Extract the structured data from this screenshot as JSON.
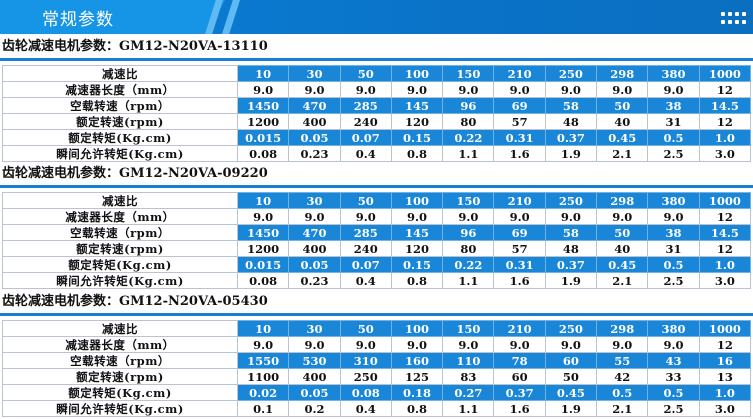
{
  "header": {
    "title": "常规参数"
  },
  "sections": [
    {
      "title": "齿轮减速电机参数：GM12-N20VA-13110",
      "rows": [
        {
          "label": "减速比",
          "values": [
            "10",
            "30",
            "50",
            "100",
            "150",
            "210",
            "250",
            "298",
            "380",
            "1000"
          ]
        },
        {
          "label": "减速器长度（mm）",
          "values": [
            "9.0",
            "9.0",
            "9.0",
            "9.0",
            "9.0",
            "9.0",
            "9.0",
            "9.0",
            "9.0",
            "12"
          ]
        },
        {
          "label": "空载转速（rpm）",
          "values": [
            "1450",
            "470",
            "285",
            "145",
            "96",
            "69",
            "58",
            "50",
            "38",
            "14.5"
          ]
        },
        {
          "label": "额定转速(rpm)",
          "values": [
            "1200",
            "400",
            "240",
            "120",
            "80",
            "57",
            "48",
            "40",
            "31",
            "12"
          ]
        },
        {
          "label": "额定转矩(Kg.cm)",
          "values": [
            "0.015",
            "0.05",
            "0.07",
            "0.15",
            "0.22",
            "0.31",
            "0.37",
            "0.45",
            "0.5",
            "1.0"
          ]
        },
        {
          "label": "瞬间允许转矩(Kg.cm)",
          "values": [
            "0.08",
            "0.23",
            "0.4",
            "0.8",
            "1.1",
            "1.6",
            "1.9",
            "2.1",
            "2.5",
            "3.0"
          ]
        }
      ]
    },
    {
      "title": "齿轮减速电机参数：GM12-N20VA-09220",
      "rows": [
        {
          "label": "减速比",
          "values": [
            "10",
            "30",
            "50",
            "100",
            "150",
            "210",
            "250",
            "298",
            "380",
            "1000"
          ]
        },
        {
          "label": "减速器长度（mm）",
          "values": [
            "9.0",
            "9.0",
            "9.0",
            "9.0",
            "9.0",
            "9.0",
            "9.0",
            "9.0",
            "9.0",
            "12"
          ]
        },
        {
          "label": "空载转速（rpm）",
          "values": [
            "1450",
            "470",
            "285",
            "145",
            "96",
            "69",
            "58",
            "50",
            "38",
            "14.5"
          ]
        },
        {
          "label": "额定转速(rpm)",
          "values": [
            "1200",
            "400",
            "240",
            "120",
            "80",
            "57",
            "48",
            "40",
            "31",
            "12"
          ]
        },
        {
          "label": "额定转矩(Kg.cm)",
          "values": [
            "0.015",
            "0.05",
            "0.07",
            "0.15",
            "0.22",
            "0.31",
            "0.37",
            "0.45",
            "0.5",
            "1.0"
          ]
        },
        {
          "label": "瞬间允许转矩(Kg.cm)",
          "values": [
            "0.08",
            "0.23",
            "0.4",
            "0.8",
            "1.1",
            "1.6",
            "1.9",
            "2.1",
            "2.5",
            "3.0"
          ]
        }
      ]
    },
    {
      "title": "齿轮减速电机参数：GM12-N20VA-05430",
      "rows": [
        {
          "label": "减速比",
          "values": [
            "10",
            "30",
            "50",
            "100",
            "150",
            "210",
            "250",
            "298",
            "380",
            "1000"
          ]
        },
        {
          "label": "减速器长度（mm）",
          "values": [
            "9.0",
            "9.0",
            "9.0",
            "9.0",
            "9.0",
            "9.0",
            "9.0",
            "9.0",
            "9.0",
            "12"
          ]
        },
        {
          "label": "空载转速（rpm）",
          "values": [
            "1550",
            "530",
            "310",
            "160",
            "110",
            "78",
            "60",
            "55",
            "43",
            "16"
          ]
        },
        {
          "label": "额定转速(rpm)",
          "values": [
            "1100",
            "400",
            "250",
            "125",
            "83",
            "60",
            "50",
            "42",
            "33",
            "13"
          ]
        },
        {
          "label": "额定转矩(Kg.cm)",
          "values": [
            "0.02",
            "0.05",
            "0.08",
            "0.18",
            "0.27",
            "0.37",
            "0.45",
            "0.5",
            "0.5",
            "1.0"
          ]
        },
        {
          "label": "瞬间允许转矩(Kg.cm)",
          "values": [
            "0.1",
            "0.2",
            "0.4",
            "0.8",
            "1.1",
            "1.6",
            "1.9",
            "2.1",
            "2.5",
            "3.0"
          ]
        }
      ]
    }
  ],
  "colors": {
    "header_blue": "#0a7fd6",
    "row_highlight": "#1a86d8",
    "rule_blue": "#1a7fd0"
  }
}
